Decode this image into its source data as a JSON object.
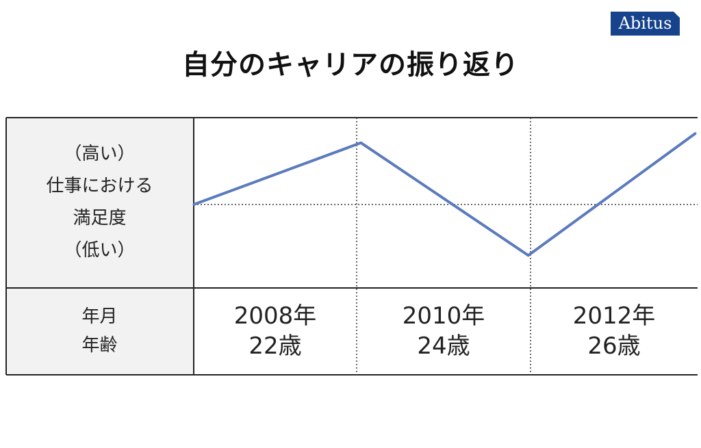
{
  "brand": "Abitus",
  "title": "自分のキャリアの振り返り",
  "row_labels": {
    "y_axis": [
      "（高い）",
      "仕事における",
      "満足度",
      "（低い）"
    ],
    "x_axis": [
      "年月",
      "年齢"
    ]
  },
  "colors": {
    "line": "#5b7bbd",
    "border": "#222222",
    "label_bg": "#f2f2f2",
    "brand_bg": "#17428c"
  },
  "chart_data": {
    "type": "line",
    "title": "自分のキャリアの振り返り",
    "ylabel": "仕事における満足度",
    "categories": [
      {
        "year": "2008年",
        "age": "22歳"
      },
      {
        "year": "2010年",
        "age": "24歳"
      },
      {
        "year": "2012年",
        "age": "26歳"
      }
    ],
    "series": [
      {
        "x": [
          0,
          1,
          2,
          3
        ],
        "y": [
          0,
          0.71,
          -0.61,
          0.82
        ]
      }
    ],
    "ylim": [
      -1,
      1
    ],
    "xlim": [
      0,
      3
    ],
    "grid": "dotted",
    "legend": "none"
  }
}
